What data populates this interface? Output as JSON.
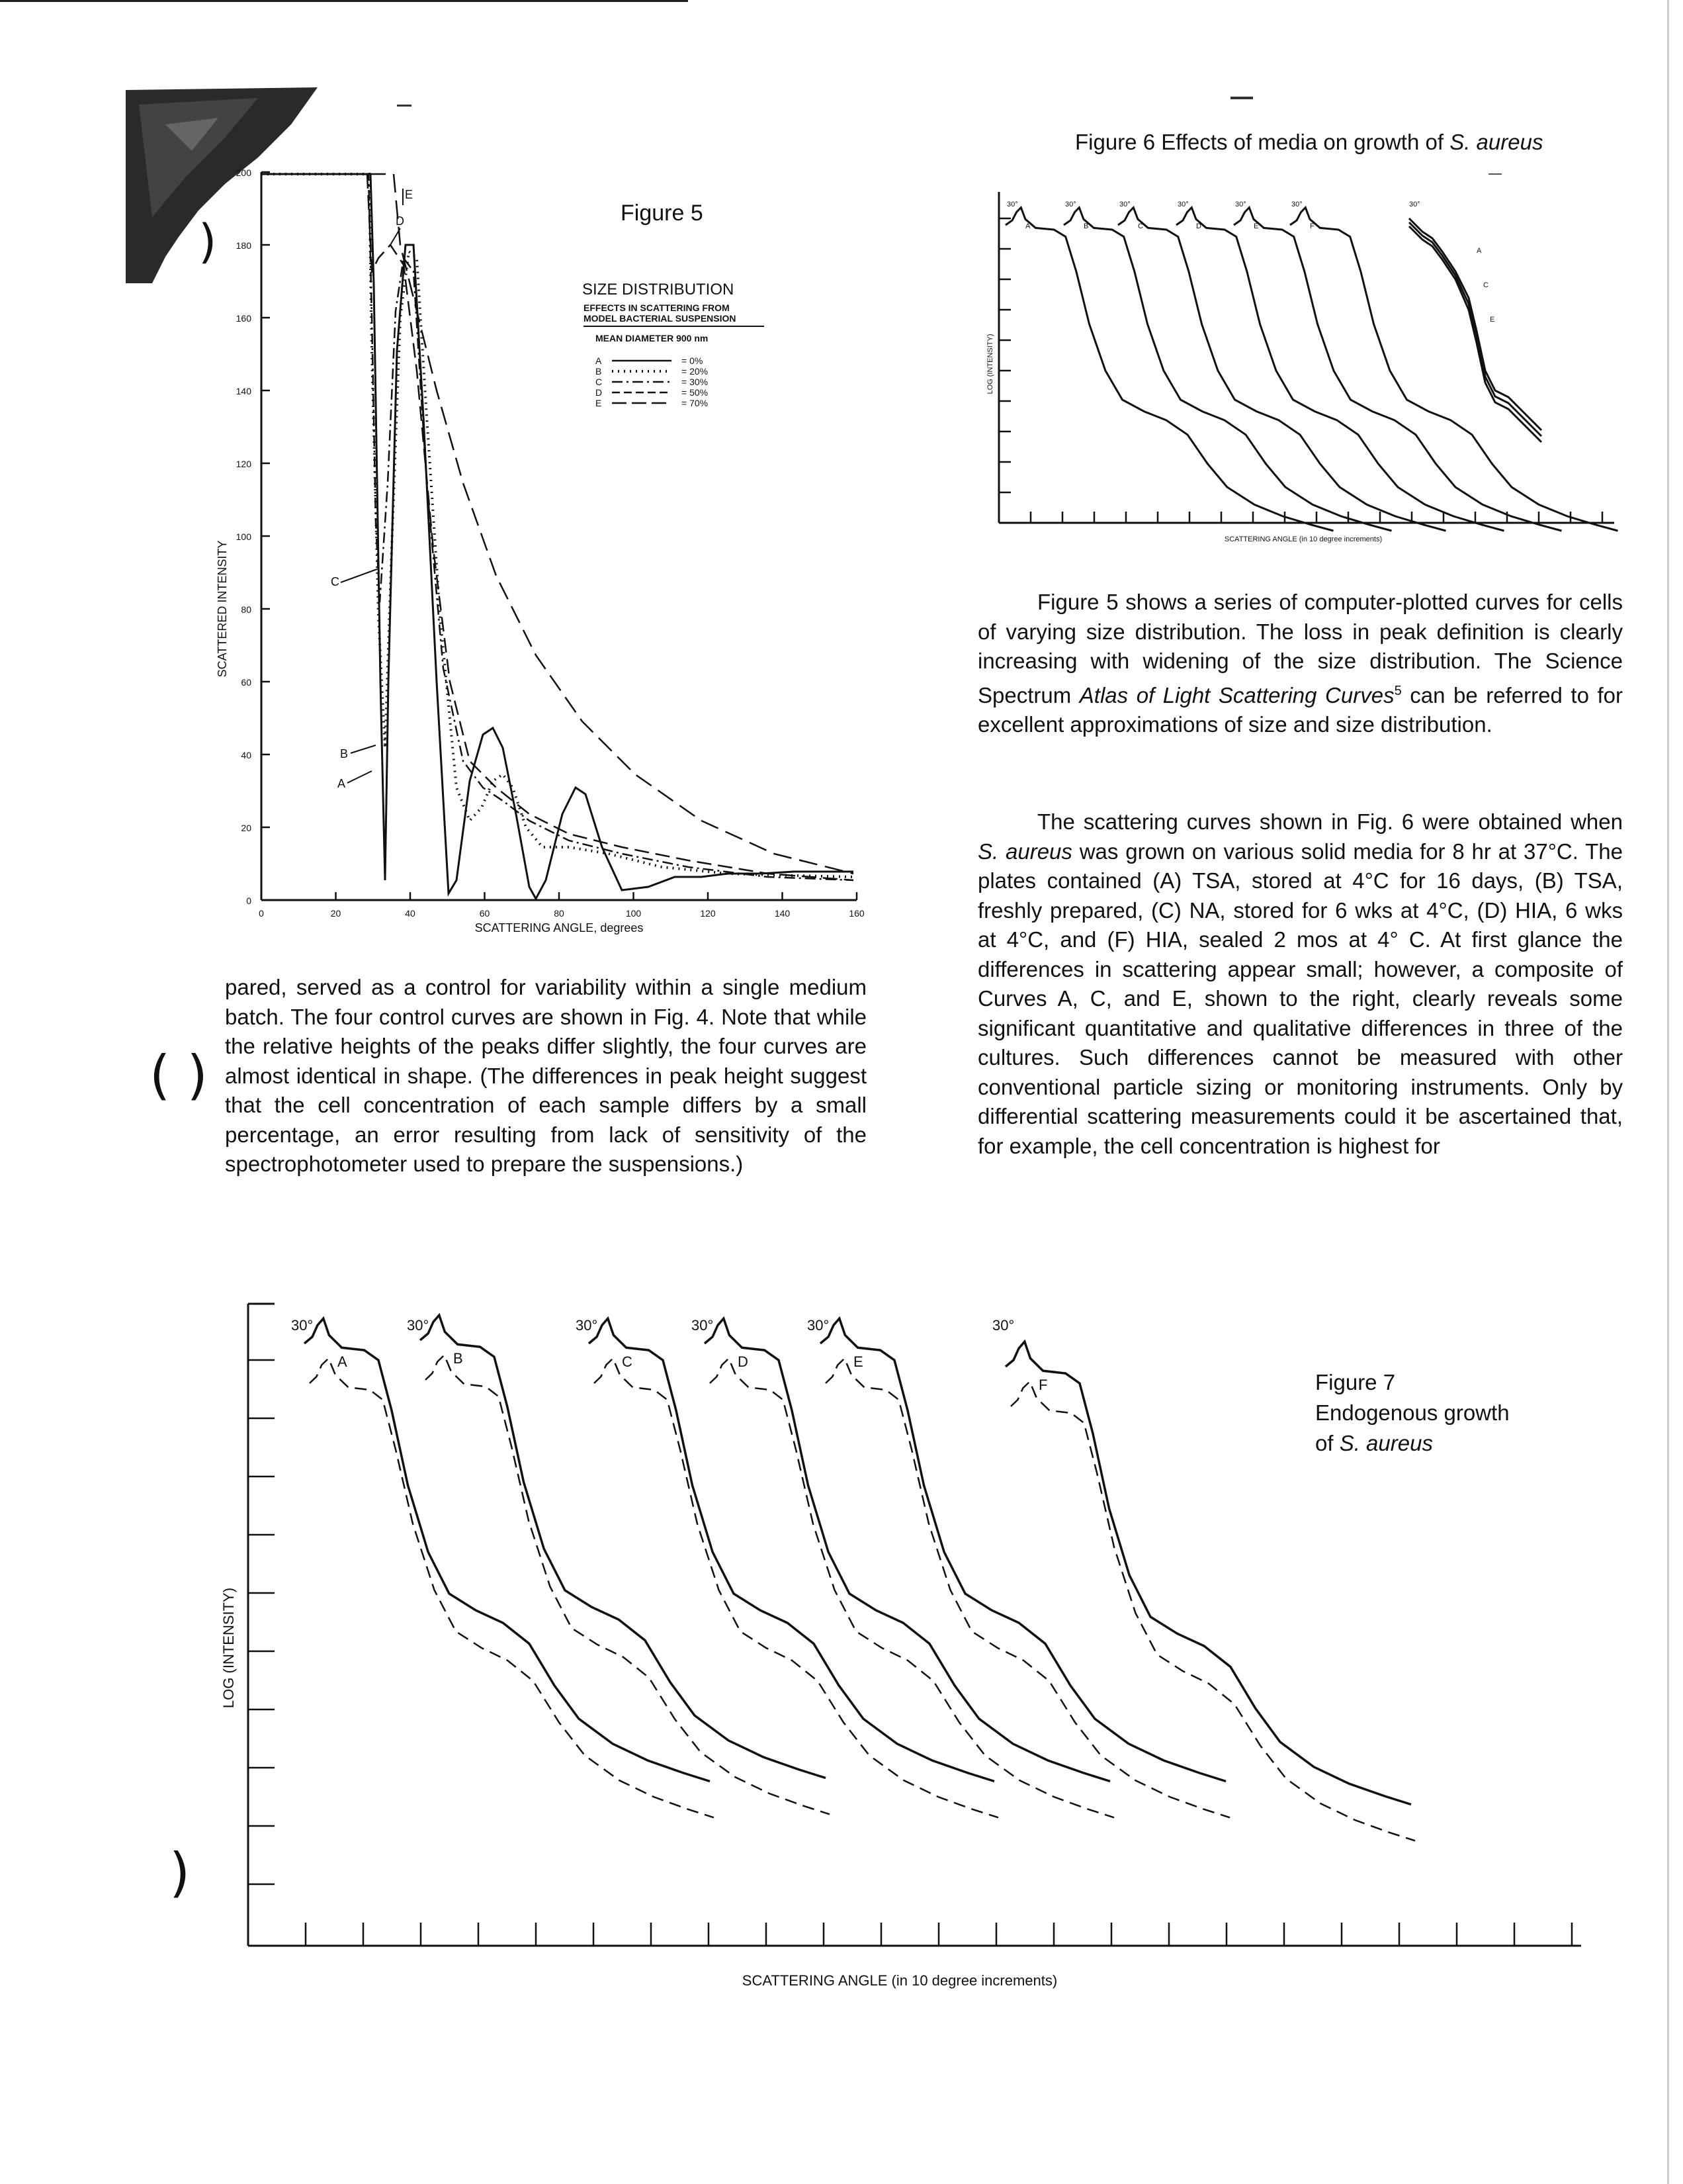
{
  "figure5": {
    "title": "Figure 5",
    "subtitle": "SIZE DISTRIBUTION",
    "desc1": "EFFECTS IN SCATTERING FROM",
    "desc2": "MODEL BACTERIAL SUSPENSION",
    "desc3": "MEAN DIAMETER 900 nm",
    "legend": [
      {
        "key": "A",
        "value": "= 0%"
      },
      {
        "key": "B",
        "value": "= 20%"
      },
      {
        "key": "C",
        "value": "= 30%"
      },
      {
        "key": "D",
        "value": "= 50%"
      },
      {
        "key": "E",
        "value": "= 70%"
      }
    ],
    "curve_labels": [
      "A",
      "B",
      "C",
      "D",
      "E"
    ],
    "ylabel": "SCATTERED INTENSITY",
    "xlabel": "SCATTERING ANGLE, degrees",
    "yticks": [
      "0",
      "20",
      "40",
      "60",
      "80",
      "100",
      "120",
      "140",
      "160",
      "180",
      "200"
    ],
    "xticks": [
      "0",
      "20",
      "40",
      "60",
      "80",
      "100",
      "120",
      "140",
      "160"
    ]
  },
  "figure6": {
    "caption_prefix": "Figure 6  Effects of media on growth of ",
    "caption_species": "S. aureus",
    "ylabel": "LOG (INTENSITY)",
    "xlabel": "SCATTERING ANGLE (in 10 degree increments)",
    "angle_label": "30°",
    "curve_labels": [
      "A",
      "B",
      "C",
      "D",
      "E",
      "F"
    ],
    "composite_labels": [
      "A",
      "C",
      "E"
    ]
  },
  "figure7": {
    "caption_line1": "Figure 7",
    "caption_line2": "Endogenous growth",
    "caption_line3_prefix": "of ",
    "caption_species": "S. aureus",
    "ylabel": "LOG (INTENSITY)",
    "xlabel": "SCATTERING ANGLE (in 10 degree increments)",
    "angle_label": "30°",
    "curve_labels": [
      "A",
      "B",
      "C",
      "D",
      "E",
      "F"
    ]
  },
  "text_right": {
    "p1_a": "Figure 5 shows a series of computer-plotted curves for cells of varying size distribution. The loss in peak definition is clearly increasing with widening of the size distribution. The Science Spectrum ",
    "p1_italic": "Atlas of Light Scattering Curves",
    "p1_sup": "5",
    "p1_b": " can be referred to for excellent approximations of size and size distribution.",
    "p2_a": "The scattering curves shown in Fig. 6 were obtained when ",
    "p2_italic": "S. aureus",
    "p2_b": " was grown on various solid media for 8 hr at 37°C. The plates contained (A) TSA, stored at 4°C for 16 days, (B) TSA, freshly prepared, (C) NA, stored for 6 wks at 4°C, (D) HIA, 6 wks at 4°C, and (F) HIA, sealed 2 mos at 4° C. At first glance the differences in scattering appear small; however, a composite of Curves A, C, and E, shown to the right, clearly reveals some significant quantitative and qualitative differences in three of the cultures. Such differences cannot be measured with other conventional particle sizing or monitoring instruments. Only by differential scattering measurements could it be ascertained that, for example, the cell concentration is highest for"
  },
  "text_left": {
    "p1": "pared, served as a control for variability within a single medium batch. The four control curves are shown in Fig. 4. Note that while the relative heights of the peaks differ slightly, the four curves are almost identical in shape. (The differences in peak height suggest that the cell concentration of each sample differs by a small percentage, an error resulting from lack of sensitivity of the spectrophotometer used to prepare the suspensions.)"
  }
}
